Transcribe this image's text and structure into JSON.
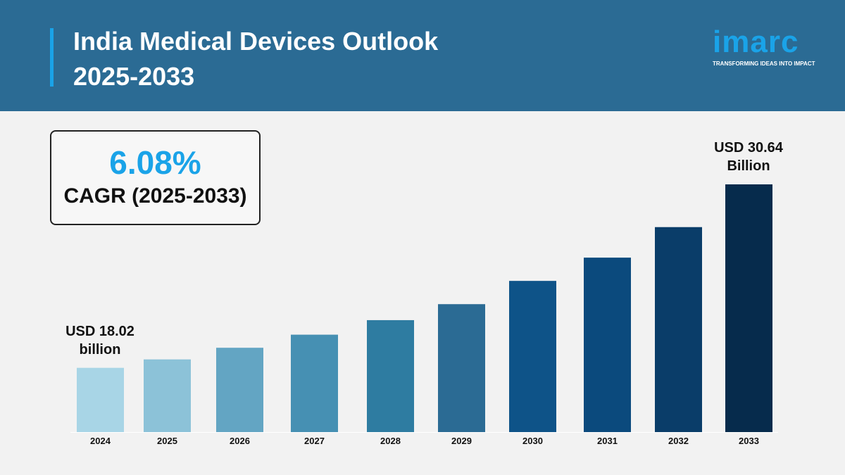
{
  "header": {
    "title_line1": "India Medical Devices Outlook",
    "title_line2": "2025-2033"
  },
  "logo": {
    "word": "imarc",
    "tagline": "TRANSFORMING IDEAS INTO IMPACT"
  },
  "cagr": {
    "value": "6.08%",
    "label": "CAGR (2025-2033)"
  },
  "annotations": {
    "start_line1": "USD 18.02",
    "start_line2": "billion",
    "end_line1": "USD 30.64",
    "end_line2": "Billion"
  },
  "chart_data": {
    "type": "bar",
    "categories": [
      "2024",
      "2025",
      "2026",
      "2027",
      "2028",
      "2029",
      "2030",
      "2031",
      "2032",
      "2033"
    ],
    "values": [
      18.02,
      18.6,
      19.4,
      20.3,
      21.3,
      22.4,
      24.0,
      25.6,
      27.7,
      30.64
    ],
    "unit": "USD billion",
    "ylim": [
      13.6,
      31.5
    ],
    "grid": false,
    "colors": [
      "#a8d5e6",
      "#8cc2d8",
      "#63a5c3",
      "#4690b3",
      "#2e7ca1",
      "#2b6b94",
      "#0e5388",
      "#0b4a7d",
      "#0a3d69",
      "#062b4c"
    ]
  }
}
